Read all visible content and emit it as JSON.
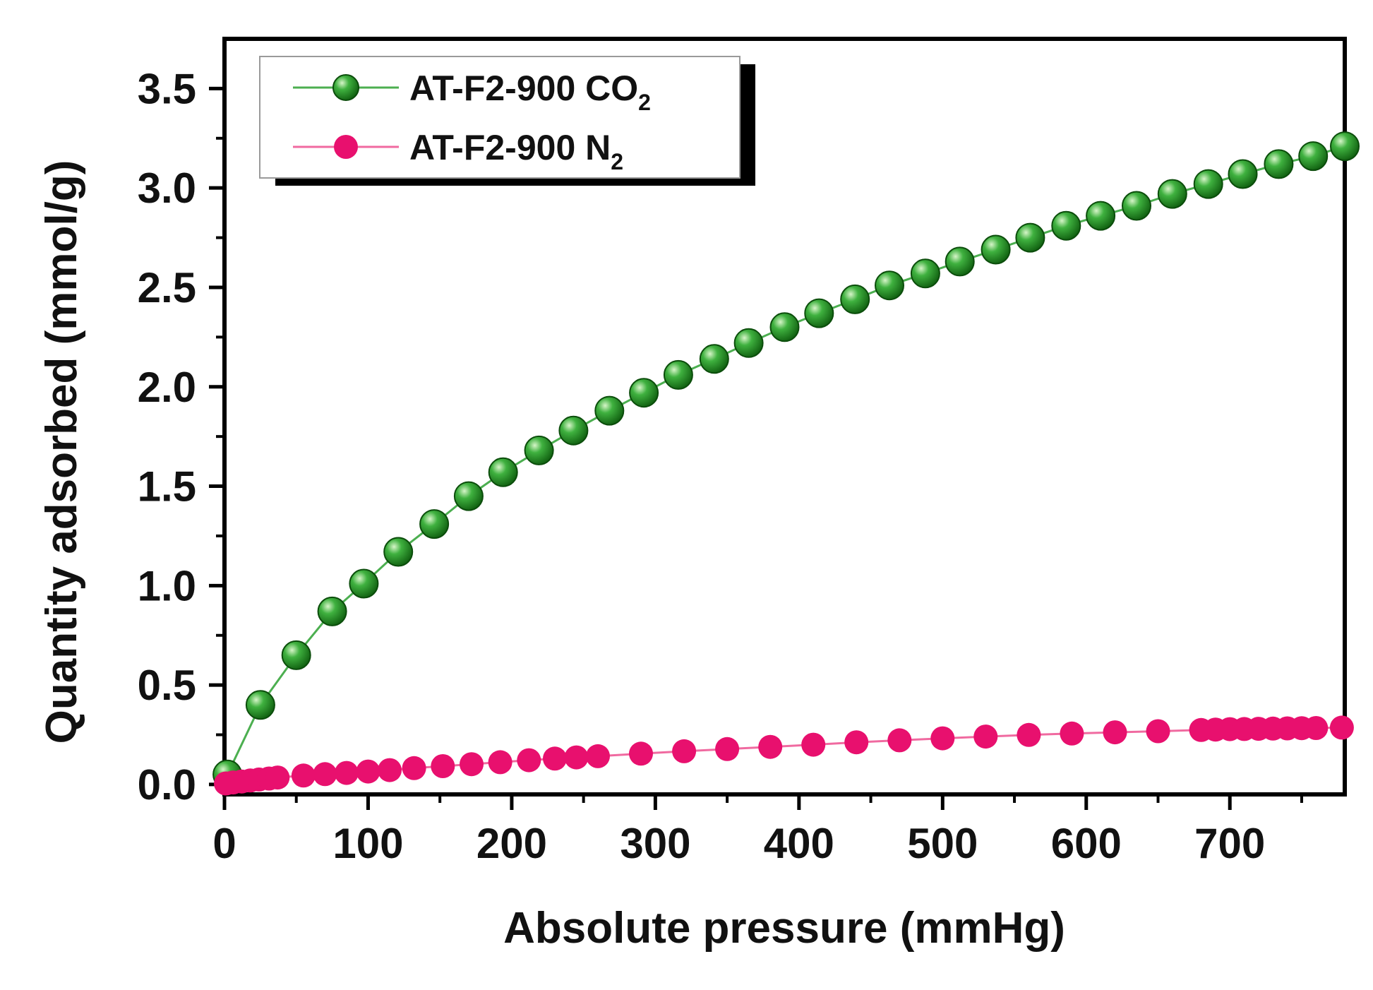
{
  "colors": {
    "co2": "#1f8a1f",
    "co2_line": "#4caf50",
    "n2": "#e8106e",
    "n2_line": "#f06aa0",
    "axis": "#000000"
  },
  "chart_data": {
    "type": "scatter",
    "xlabel": "Absolute pressure (mmHg)",
    "ylabel": "Quantity adsorbed (mmol/g)",
    "xlim": [
      0,
      780
    ],
    "ylim": [
      -0.05,
      3.75
    ],
    "xticks": [
      "0",
      "100",
      "200",
      "300",
      "400",
      "500",
      "600",
      "700"
    ],
    "yticks": [
      "0.0",
      "0.5",
      "1.0",
      "1.5",
      "2.0",
      "2.5",
      "3.0",
      "3.5"
    ],
    "legend_position": "top-left",
    "series": [
      {
        "name_main": "AT-F2-900 CO",
        "name_sub": "2",
        "marker": "sphere",
        "x": [
          2,
          25,
          50,
          75,
          97,
          121,
          146,
          170,
          194,
          219,
          243,
          268,
          292,
          316,
          341,
          365,
          390,
          414,
          439,
          463,
          488,
          512,
          537,
          561,
          586,
          610,
          635,
          660,
          685,
          709,
          734,
          758,
          780
        ],
        "y": [
          0.05,
          0.4,
          0.65,
          0.87,
          1.01,
          1.17,
          1.31,
          1.45,
          1.57,
          1.68,
          1.78,
          1.88,
          1.97,
          2.06,
          2.14,
          2.22,
          2.3,
          2.37,
          2.44,
          2.51,
          2.57,
          2.63,
          2.69,
          2.75,
          2.81,
          2.86,
          2.91,
          2.97,
          3.02,
          3.07,
          3.12,
          3.16,
          3.21
        ]
      },
      {
        "name_main": "AT-F2-900 N",
        "name_sub": "2",
        "marker": "circle",
        "x": [
          1,
          6,
          12,
          18,
          24,
          31,
          37,
          55,
          70,
          85,
          100,
          115,
          132,
          152,
          172,
          192,
          212,
          230,
          245,
          260,
          290,
          320,
          350,
          380,
          410,
          440,
          470,
          500,
          530,
          560,
          590,
          620,
          650,
          680,
          690,
          700,
          710,
          720,
          730,
          740,
          750,
          760,
          778
        ],
        "y": [
          0.005,
          0.01,
          0.015,
          0.02,
          0.025,
          0.03,
          0.035,
          0.045,
          0.052,
          0.058,
          0.065,
          0.072,
          0.082,
          0.092,
          0.102,
          0.112,
          0.122,
          0.13,
          0.136,
          0.142,
          0.155,
          0.167,
          0.178,
          0.189,
          0.2,
          0.212,
          0.222,
          0.232,
          0.241,
          0.249,
          0.256,
          0.262,
          0.268,
          0.274,
          0.276,
          0.278,
          0.279,
          0.28,
          0.281,
          0.282,
          0.283,
          0.284,
          0.286
        ]
      }
    ]
  }
}
